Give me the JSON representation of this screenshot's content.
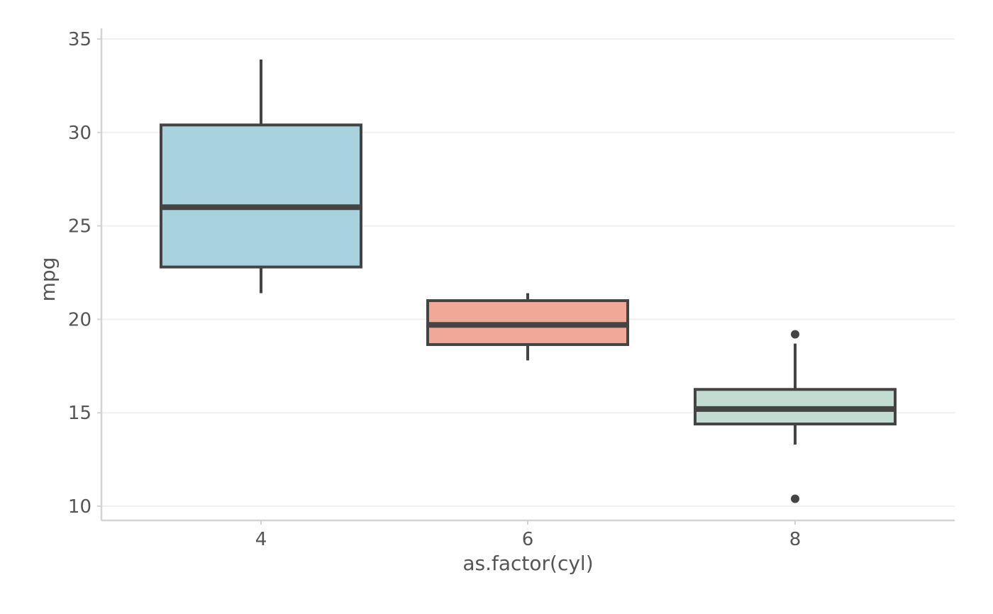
{
  "chart_data": {
    "type": "box",
    "title": "",
    "xlabel": "as.factor(cyl)",
    "ylabel": "mpg",
    "ylim": [
      9.3,
      35
    ],
    "y_ticks": [
      10,
      15,
      20,
      25,
      30,
      35
    ],
    "grid": "horizontal",
    "legend": "none",
    "categories": [
      "4",
      "6",
      "8"
    ],
    "boxes": [
      {
        "category": "4",
        "whisker_low": 21.4,
        "q1": 22.8,
        "median": 26.0,
        "q3": 30.4,
        "whisker_high": 33.9,
        "outliers": [],
        "fill": "#a8d2de"
      },
      {
        "category": "6",
        "whisker_low": 17.8,
        "q1": 18.65,
        "median": 19.7,
        "q3": 21.0,
        "whisker_high": 21.4,
        "outliers": [],
        "fill": "#f2a897"
      },
      {
        "category": "8",
        "whisker_low": 13.3,
        "q1": 14.4,
        "median": 15.2,
        "q3": 16.25,
        "whisker_high": 18.7,
        "outliers": [
          19.2,
          10.4
        ],
        "fill": "#c3dcd2"
      }
    ],
    "colors": {
      "box_stroke": "#444444",
      "grid": "#f0f0f0",
      "axis": "#d4d4d4",
      "text": "#555555"
    }
  }
}
